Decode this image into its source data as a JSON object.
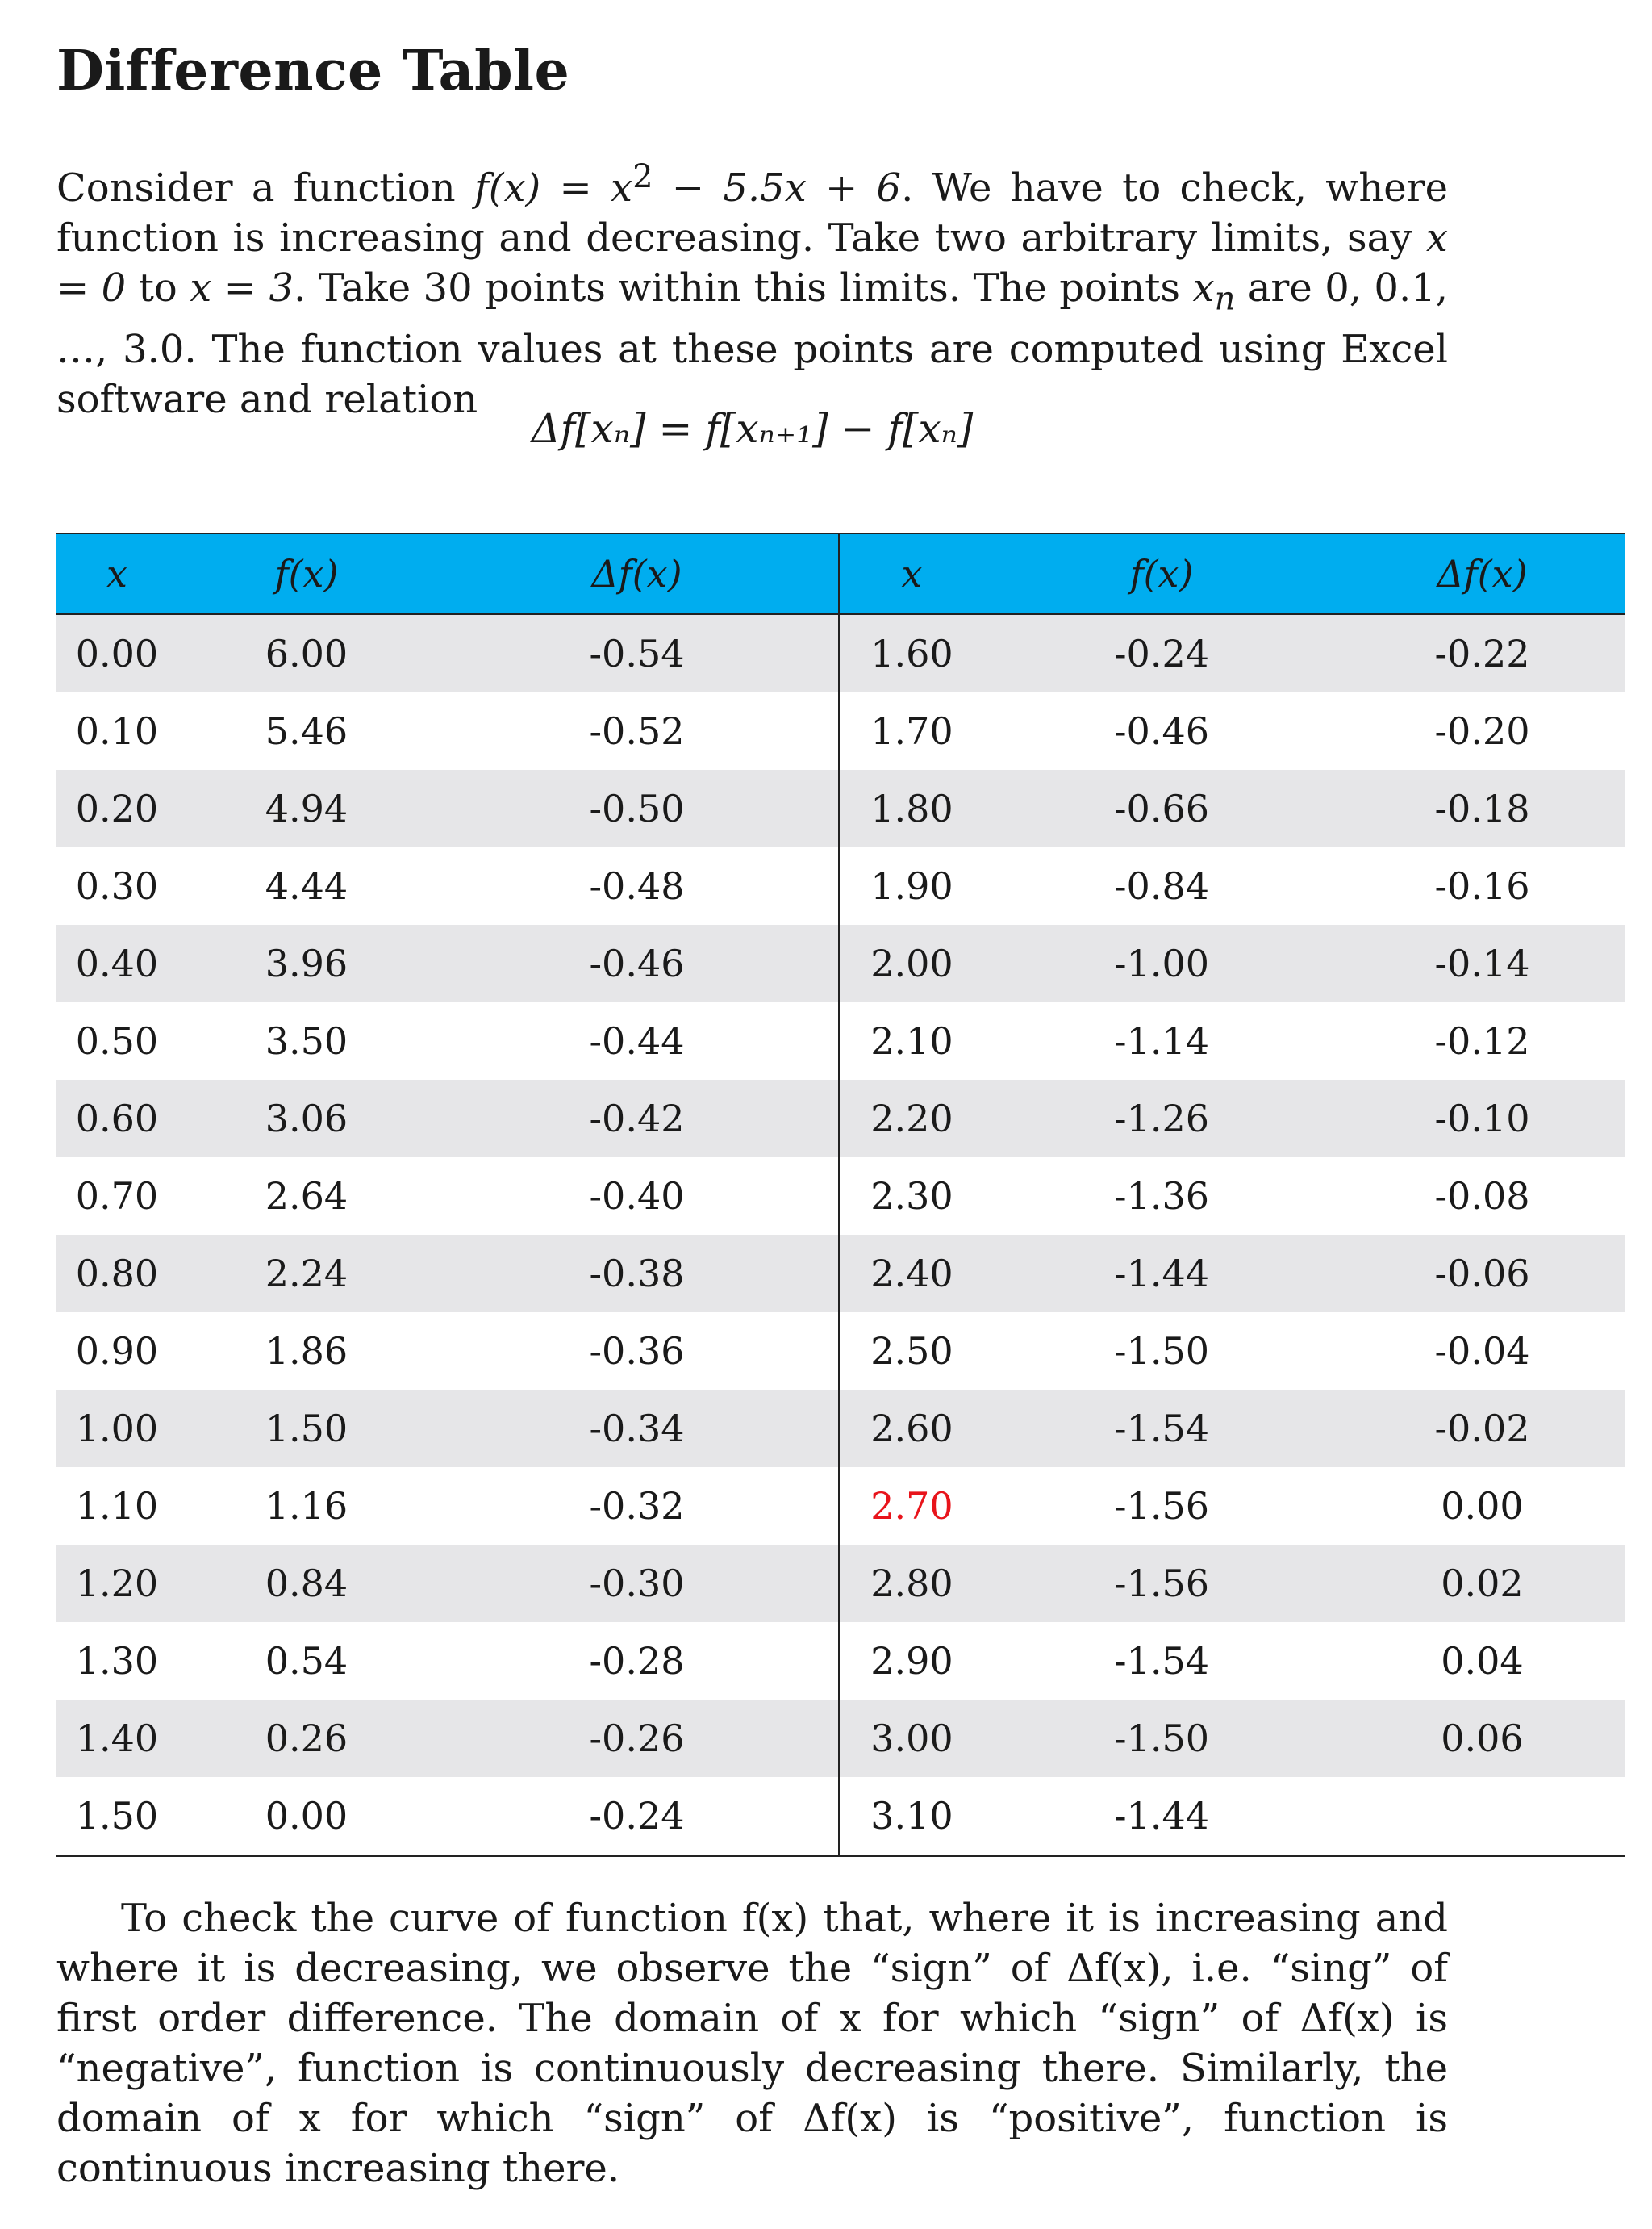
{
  "title": "Difference Table",
  "intro": {
    "before_f": "Consider a function ",
    "f_expr": "f(x)",
    "eq": " = x",
    "sq": "2",
    "rest_formula": " − 5.5x + 6",
    "text1": ". We have to check, where function is increasing and decreasing. Take two arbitrary limits, say ",
    "lim1": "x = 0",
    "to": " to ",
    "lim2": "x = 3",
    "text2": ". Take 30 points within this limits. The points ",
    "xn": "x",
    "n_sub": "n",
    "text3": " are 0, 0.1, …, 3.0. The function values at these points are computed using Excel software and relation"
  },
  "equation": "Δf[xₙ] = f[xₙ₊₁] − f[xₙ]",
  "table": {
    "headers": [
      "x",
      "f(x)",
      "Δf(x)",
      "x",
      "f(x)",
      "Δf(x)"
    ],
    "rows": [
      [
        "0.00",
        "6.00",
        "-0.54",
        "1.60",
        "-0.24",
        "-0.22"
      ],
      [
        "0.10",
        "5.46",
        "-0.52",
        "1.70",
        "-0.46",
        "-0.20"
      ],
      [
        "0.20",
        "4.94",
        "-0.50",
        "1.80",
        "-0.66",
        "-0.18"
      ],
      [
        "0.30",
        "4.44",
        "-0.48",
        "1.90",
        "-0.84",
        "-0.16"
      ],
      [
        "0.40",
        "3.96",
        "-0.46",
        "2.00",
        "-1.00",
        "-0.14"
      ],
      [
        "0.50",
        "3.50",
        "-0.44",
        "2.10",
        "-1.14",
        "-0.12"
      ],
      [
        "0.60",
        "3.06",
        "-0.42",
        "2.20",
        "-1.26",
        "-0.10"
      ],
      [
        "0.70",
        "2.64",
        "-0.40",
        "2.30",
        "-1.36",
        "-0.08"
      ],
      [
        "0.80",
        "2.24",
        "-0.38",
        "2.40",
        "-1.44",
        "-0.06"
      ],
      [
        "0.90",
        "1.86",
        "-0.36",
        "2.50",
        "-1.50",
        "-0.04"
      ],
      [
        "1.00",
        "1.50",
        "-0.34",
        "2.60",
        "-1.54",
        "-0.02"
      ],
      [
        "1.10",
        "1.16",
        "-0.32",
        "2.70",
        "-1.56",
        "0.00"
      ],
      [
        "1.20",
        "0.84",
        "-0.30",
        "2.80",
        "-1.56",
        "0.02"
      ],
      [
        "1.30",
        "0.54",
        "-0.28",
        "2.90",
        "-1.54",
        "0.04"
      ],
      [
        "1.40",
        "0.26",
        "-0.26",
        "3.00",
        "-1.50",
        "0.06"
      ],
      [
        "1.50",
        "0.00",
        "-0.24",
        "3.10",
        "-1.44",
        ""
      ]
    ],
    "highlight_value": "2.70",
    "highlight_color": "#e8141b",
    "header_color": "#00adef",
    "stripe_color": "#e6e6e8"
  },
  "conclusion": "To check the curve of function f(x) that, where it is increasing and where it is decreasing, we observe the “sign” of Δf(x), i.e. “sing” of first order difference. The domain of x for which “sign” of Δf(x) is “negative”, function is continuously decreasing there. Similarly, the domain of x for which “sign” of Δf(x) is “positive”, function is continuous increasing there."
}
